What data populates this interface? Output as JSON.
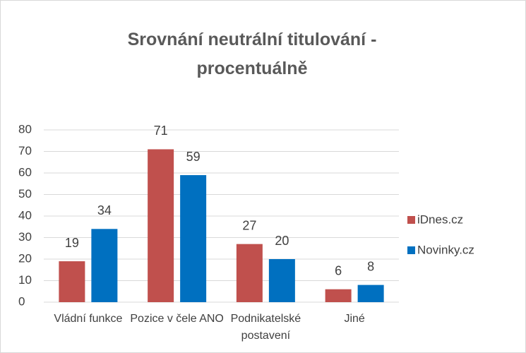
{
  "chart_data": {
    "type": "bar",
    "title": "Srovnání neutrální titulování - procentuálně",
    "categories": [
      "Vládní funkce",
      "Pozice v čele ANO",
      "Podnikatelské postavení",
      "Jiné"
    ],
    "series": [
      {
        "name": "iDnes.cz",
        "color": "#c0504d",
        "values": [
          19,
          71,
          27,
          6
        ]
      },
      {
        "name": "Novinky.cz",
        "color": "#0070c0",
        "values": [
          34,
          59,
          20,
          8
        ]
      }
    ],
    "ylim": [
      0,
      80
    ],
    "yticks": [
      0,
      10,
      20,
      30,
      40,
      50,
      60,
      70,
      80
    ],
    "grid": true,
    "legend": "right"
  }
}
